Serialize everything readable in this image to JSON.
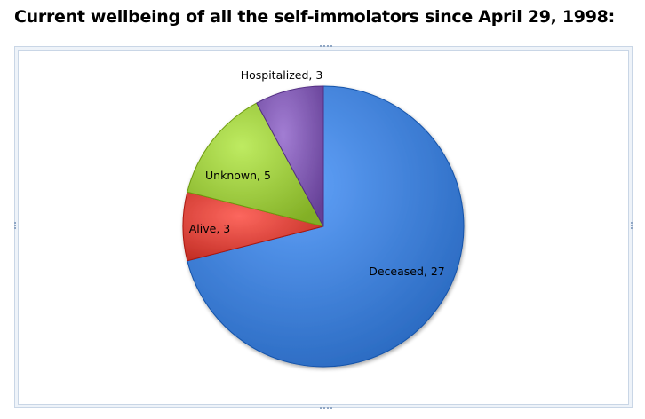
{
  "page": {
    "title": "Current wellbeing of all the self-immolators since April 29, 1998:"
  },
  "chart_data": {
    "type": "pie",
    "title": "",
    "legend": "none",
    "labels_on_slices": true,
    "slices": [
      {
        "label": "Deceased",
        "value": 27,
        "color": "#3f7fd6",
        "display": "Deceased, 27"
      },
      {
        "label": "Alive",
        "value": 3,
        "color": "#d9443b",
        "display": "Alive, 3"
      },
      {
        "label": "Unknown",
        "value": 5,
        "color": "#9bc83e",
        "display": "Unknown, 5"
      },
      {
        "label": "Hospitalized",
        "value": 3,
        "color": "#7f5ab0",
        "display": "Hospitalized, 3"
      }
    ]
  }
}
